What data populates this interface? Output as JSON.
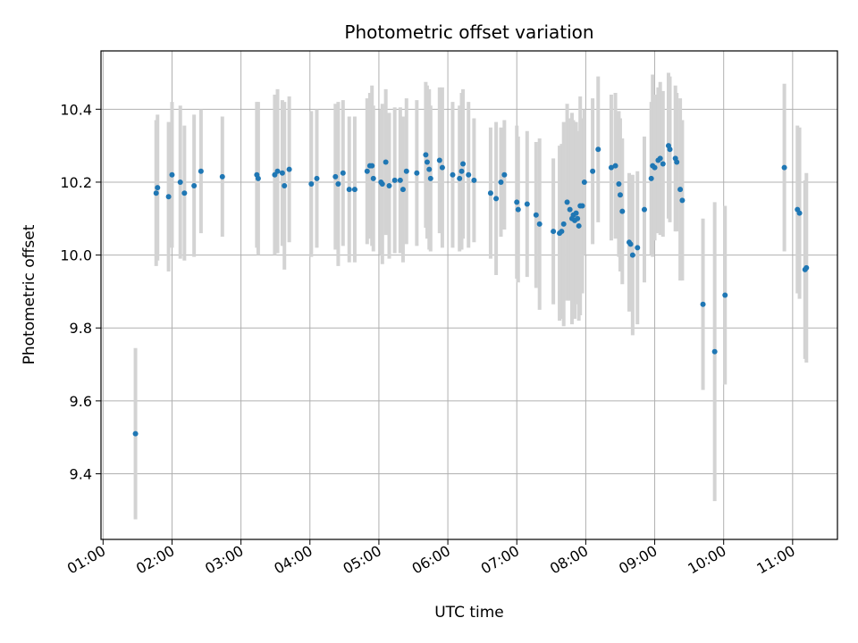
{
  "chart_data": {
    "type": "scatter",
    "title": "Photometric offset variation",
    "xlabel": "UTC time",
    "ylabel": "Photometric offset",
    "x_unit": "hour",
    "xlim": [
      0.97,
      11.65
    ],
    "ylim": [
      9.22,
      10.56
    ],
    "xticks": [
      1,
      2,
      3,
      4,
      5,
      6,
      7,
      8,
      9,
      10,
      11
    ],
    "xtick_labels": [
      "01:00",
      "02:00",
      "03:00",
      "04:00",
      "05:00",
      "06:00",
      "07:00",
      "08:00",
      "09:00",
      "10:00",
      "11:00"
    ],
    "yticks": [
      9.4,
      9.6,
      9.8,
      10.0,
      10.2,
      10.4
    ],
    "ytick_labels": [
      "9.4",
      "9.6",
      "9.8",
      "10.0",
      "10.2",
      "10.4"
    ],
    "grid": true,
    "marker_color": "#1f77b4",
    "errorbar_color": "#d3d3d3",
    "series": [
      {
        "x": [
          1.47,
          1.77,
          1.79,
          1.95,
          2.0,
          2.12,
          2.18,
          2.32,
          2.42,
          2.73,
          3.23,
          3.25,
          3.49,
          3.53,
          3.6,
          3.63,
          3.7,
          4.02,
          4.1,
          4.37,
          4.41,
          4.48,
          4.57,
          4.65,
          4.83,
          4.87,
          4.9,
          4.92,
          5.03,
          5.05,
          5.1,
          5.15,
          5.23,
          5.31,
          5.35,
          5.4,
          5.55,
          5.68,
          5.7,
          5.73,
          5.75,
          5.88,
          5.92,
          6.07,
          6.17,
          6.2,
          6.22,
          6.3,
          6.38,
          6.62,
          6.7,
          6.77,
          6.82,
          7.0,
          7.02,
          7.15,
          7.28,
          7.33,
          7.53,
          7.62,
          7.65,
          7.68,
          7.73,
          7.77,
          7.8,
          7.82,
          7.84,
          7.86,
          7.88,
          7.9,
          7.92,
          7.95,
          7.98,
          8.1,
          8.18,
          8.37,
          8.43,
          8.48,
          8.5,
          8.53,
          8.63,
          8.65,
          8.68,
          8.75,
          8.85,
          8.95,
          8.97,
          9.0,
          9.05,
          9.08,
          9.12,
          9.2,
          9.22,
          9.3,
          9.32,
          9.37,
          9.4,
          9.7,
          9.87,
          10.02,
          10.88,
          11.07,
          11.1,
          11.18,
          11.2
        ],
        "y": [
          9.51,
          10.17,
          10.185,
          10.16,
          10.22,
          10.2,
          10.17,
          10.19,
          10.23,
          10.215,
          10.22,
          10.21,
          10.22,
          10.23,
          10.225,
          10.19,
          10.235,
          10.195,
          10.21,
          10.215,
          10.195,
          10.225,
          10.18,
          10.18,
          10.23,
          10.245,
          10.245,
          10.21,
          10.2,
          10.195,
          10.255,
          10.19,
          10.205,
          10.205,
          10.18,
          10.23,
          10.225,
          10.275,
          10.255,
          10.235,
          10.21,
          10.26,
          10.24,
          10.22,
          10.21,
          10.23,
          10.25,
          10.22,
          10.205,
          10.17,
          10.155,
          10.2,
          10.22,
          10.145,
          10.125,
          10.14,
          10.11,
          10.085,
          10.065,
          10.06,
          10.065,
          10.085,
          10.145,
          10.125,
          10.1,
          10.11,
          10.095,
          10.115,
          10.1,
          10.08,
          10.135,
          10.135,
          10.2,
          10.23,
          10.29,
          10.24,
          10.245,
          10.195,
          10.165,
          10.12,
          10.035,
          10.03,
          10.0,
          10.02,
          10.125,
          10.21,
          10.245,
          10.24,
          10.26,
          10.265,
          10.25,
          10.3,
          10.29,
          10.265,
          10.255,
          10.18,
          10.15,
          9.865,
          9.735,
          9.89,
          10.24,
          10.125,
          10.115,
          9.96,
          9.965
        ],
        "err": [
          0.235,
          0.2,
          0.2,
          0.205,
          0.2,
          0.21,
          0.185,
          0.195,
          0.17,
          0.165,
          0.2,
          0.21,
          0.22,
          0.225,
          0.2,
          0.23,
          0.2,
          0.2,
          0.19,
          0.2,
          0.225,
          0.2,
          0.2,
          0.2,
          0.2,
          0.2,
          0.22,
          0.2,
          0.2,
          0.22,
          0.2,
          0.2,
          0.2,
          0.2,
          0.2,
          0.2,
          0.2,
          0.2,
          0.21,
          0.22,
          0.2,
          0.2,
          0.22,
          0.2,
          0.2,
          0.215,
          0.205,
          0.2,
          0.17,
          0.18,
          0.21,
          0.15,
          0.15,
          0.21,
          0.2,
          0.2,
          0.2,
          0.235,
          0.2,
          0.24,
          0.24,
          0.28,
          0.27,
          0.25,
          0.29,
          0.26,
          0.27,
          0.25,
          0.23,
          0.26,
          0.3,
          0.24,
          0.2,
          0.2,
          0.2,
          0.2,
          0.2,
          0.2,
          0.21,
          0.2,
          0.19,
          0.18,
          0.22,
          0.21,
          0.2,
          0.21,
          0.25,
          0.2,
          0.2,
          0.21,
          0.2,
          0.2,
          0.2,
          0.2,
          0.19,
          0.25,
          0.22,
          0.235,
          0.41,
          0.245,
          0.23,
          0.23,
          0.235,
          0.245,
          0.26
        ]
      }
    ]
  }
}
